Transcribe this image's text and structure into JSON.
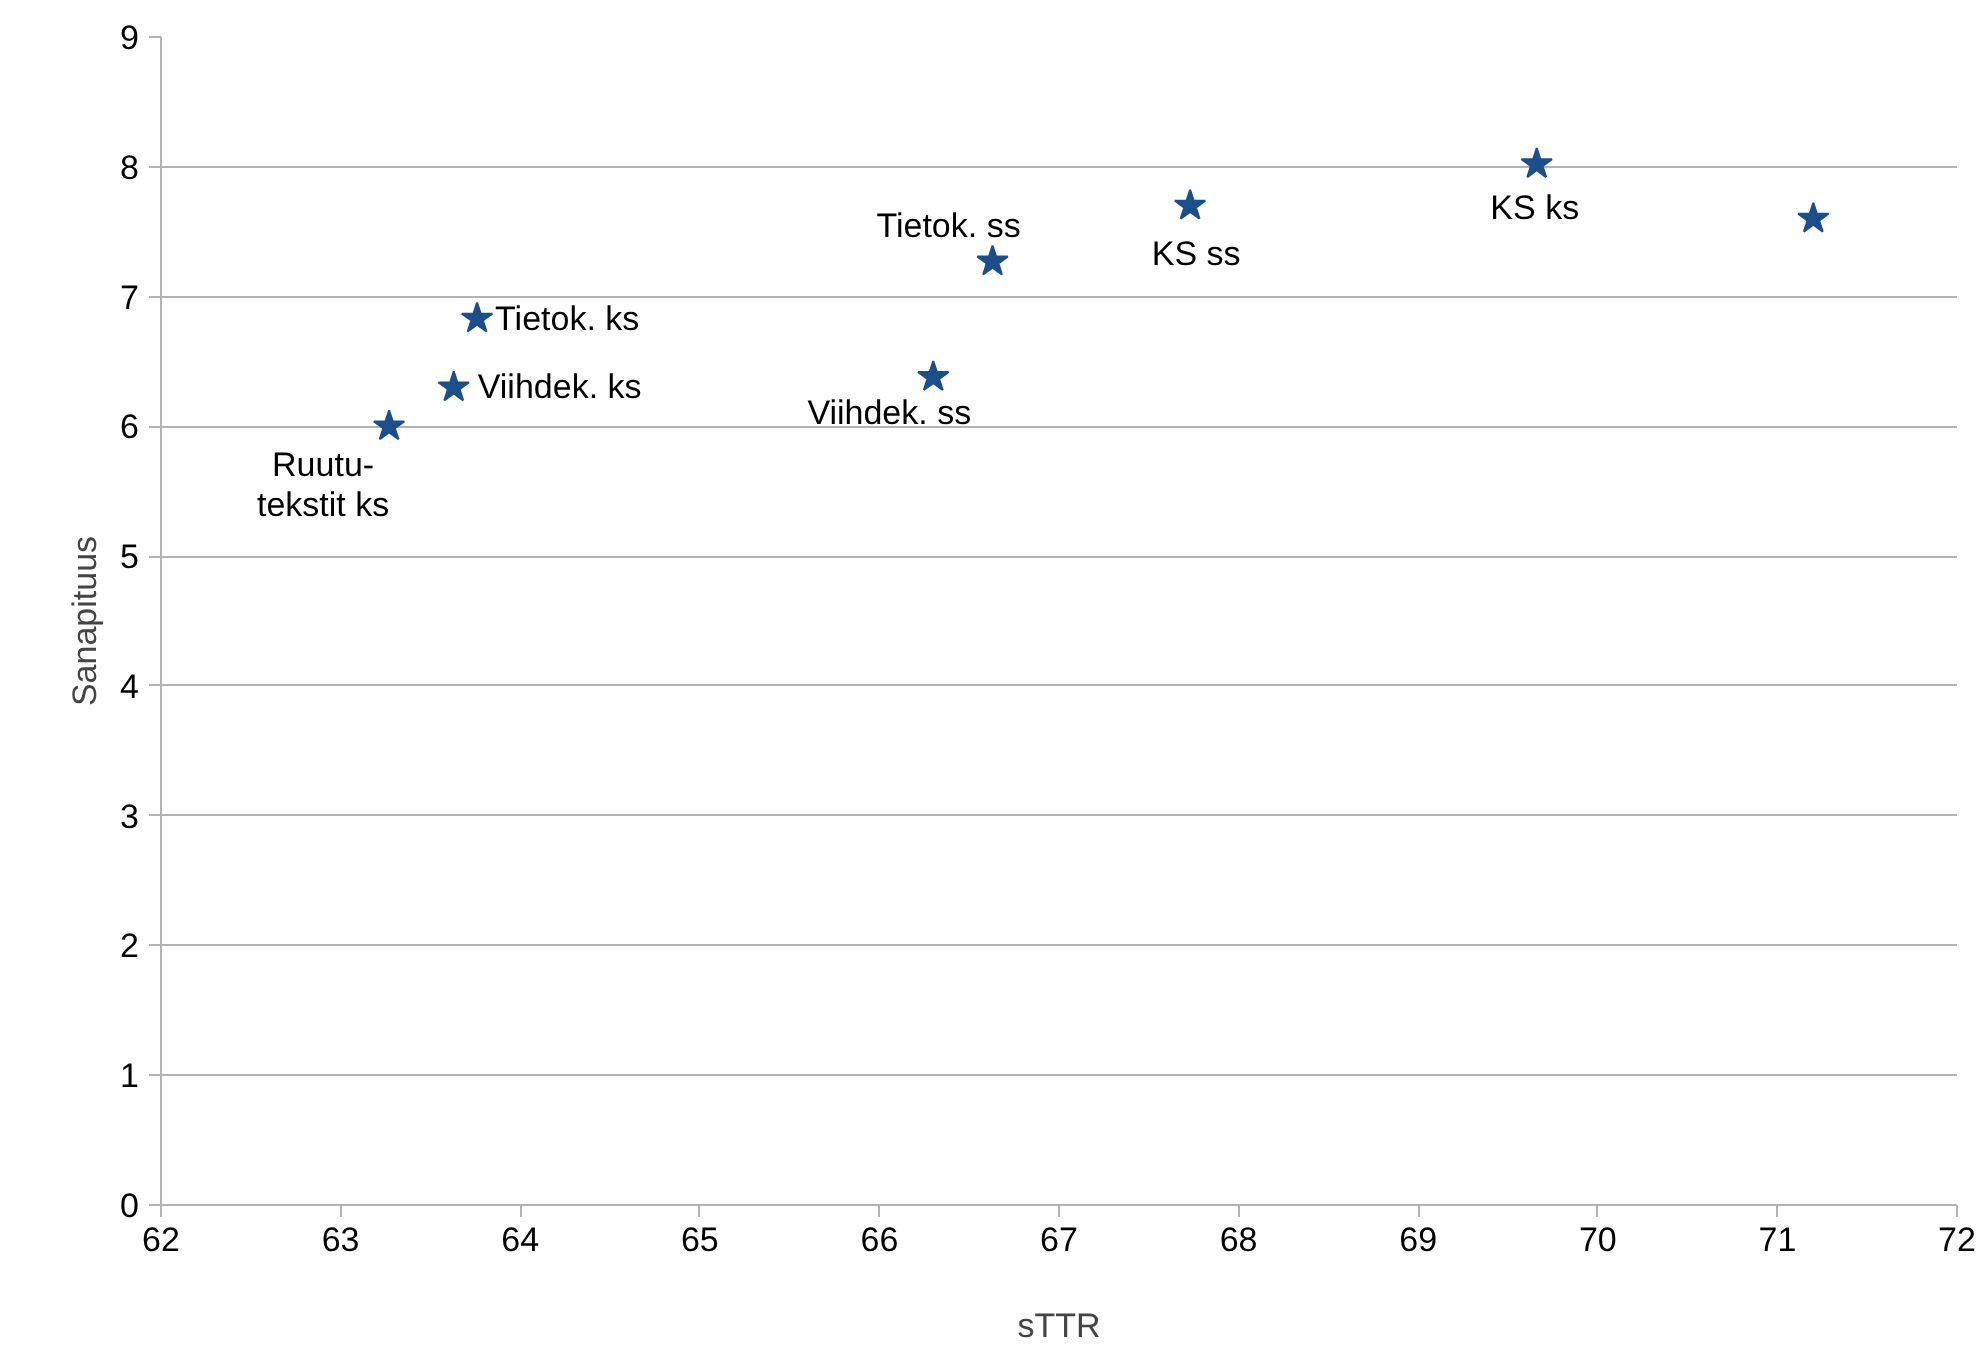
{
  "chart_data": {
    "type": "scatter",
    "xlabel": "sTTR",
    "ylabel": "Sanapituus",
    "x": [
      63.27,
      63.63,
      63.76,
      66.3,
      66.63,
      67.73,
      69.66,
      71.2
    ],
    "series": [
      {
        "color": "#1c4f8a",
        "values": [
          6.0,
          6.3,
          6.83,
          6.38,
          7.27,
          7.7,
          8.02,
          7.6
        ]
      }
    ],
    "annotations": [
      {
        "text": "Ruutu-\ntekstit ks",
        "x": 63.27,
        "y": 6.0
      },
      {
        "text": "Viihdek. ks",
        "x": 63.63,
        "y": 6.3
      },
      {
        "text": "Tietok. ks",
        "x": 63.76,
        "y": 6.83
      },
      {
        "text": "Viihdek. ss",
        "x": 66.3,
        "y": 6.38
      },
      {
        "text": "Tietok. ss",
        "x": 66.63,
        "y": 7.27
      },
      {
        "text": "KS ss",
        "x": 67.73,
        "y": 7.7
      },
      {
        "text": "KS ks",
        "x": 69.66,
        "y": 8.02
      }
    ],
    "xlim": [
      62,
      72
    ],
    "ylim": [
      0,
      9
    ],
    "xticks": [
      62,
      63,
      64,
      65,
      66,
      67,
      68,
      69,
      70,
      71,
      72
    ],
    "yticks": [
      0,
      1,
      2,
      3,
      4,
      5,
      6,
      7,
      8,
      9
    ],
    "grid": "y",
    "marker": "star"
  }
}
